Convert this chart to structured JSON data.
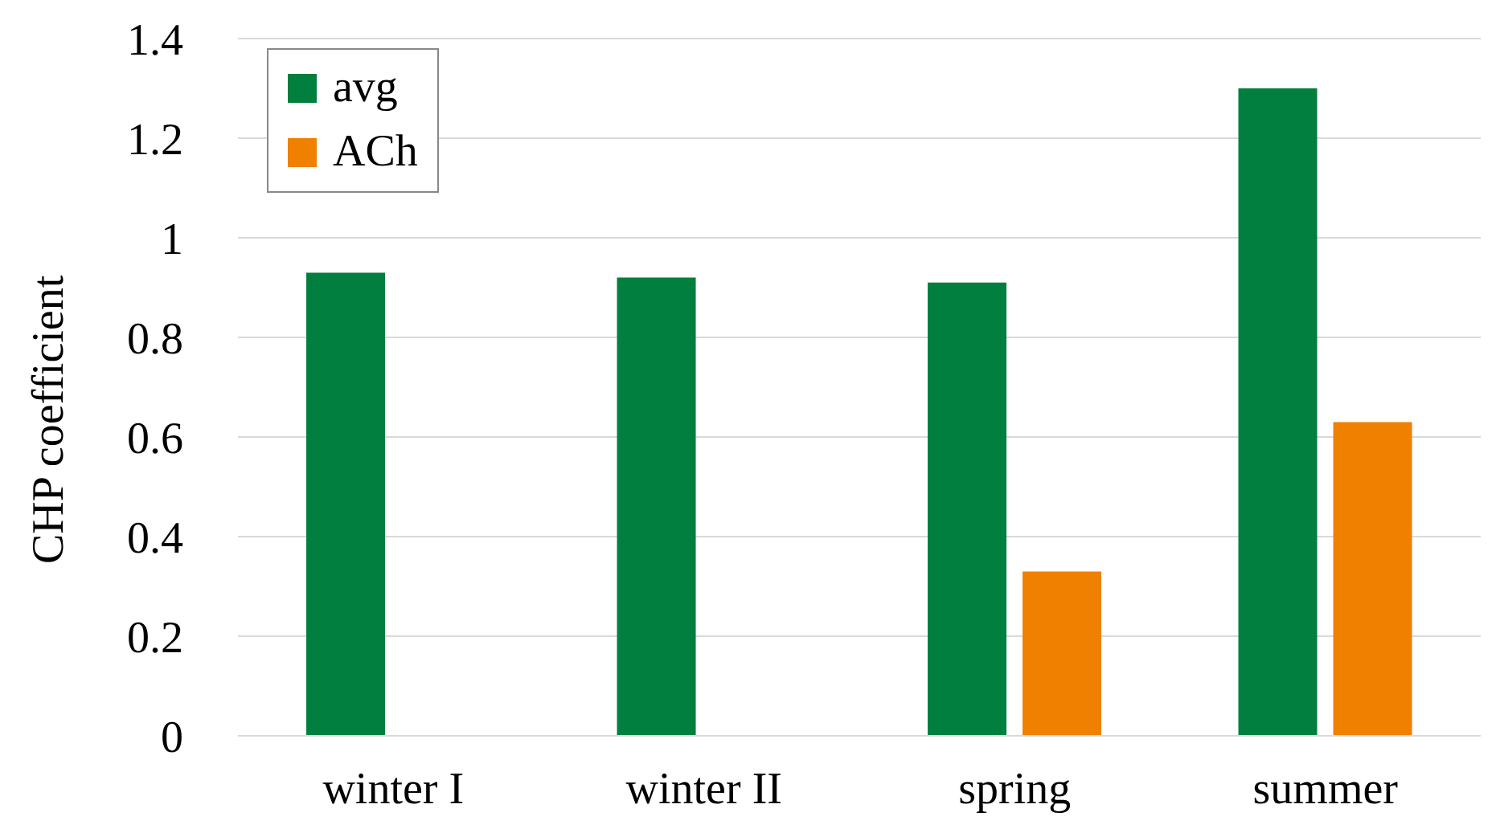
{
  "chart_data": {
    "type": "bar",
    "ylabel": "CHP coefficient",
    "categories": [
      "winter I",
      "winter II",
      "spring",
      "summer"
    ],
    "series": [
      {
        "name": "avg",
        "color": "#007f3f",
        "values": [
          0.93,
          0.92,
          0.91,
          1.3
        ]
      },
      {
        "name": "ACh",
        "color": "#f08000",
        "values": [
          null,
          null,
          0.33,
          0.63
        ]
      }
    ],
    "ylim": [
      0,
      1.4
    ],
    "yticks": [
      0,
      0.2,
      0.4,
      0.6,
      0.8,
      1,
      1.2,
      1.4
    ],
    "grid": "y",
    "legend": "top left"
  }
}
